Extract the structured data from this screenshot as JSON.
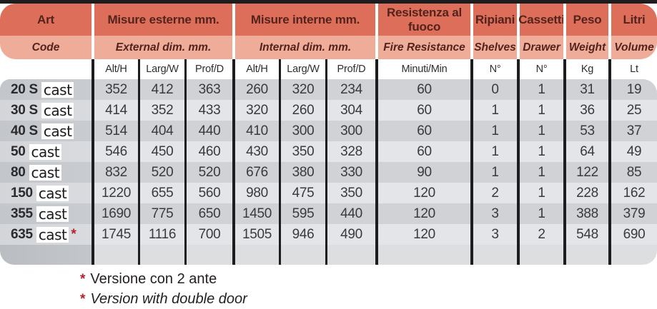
{
  "colors": {
    "top_bar": "#1d1d1f",
    "header_primary_bg": "#dd6e5a",
    "header_secondary_bg": "#efac99",
    "header_text": "#54231d",
    "row_dark_bg": "#d0d2d6",
    "row_light_bg": "#e4e5e8",
    "grid_line": "#1d1d1f",
    "footnote_marker_red": "#b2232b",
    "brand_box_bg": "#ffffff"
  },
  "table": {
    "groups": [
      {
        "it": "Art",
        "en": "Code"
      },
      {
        "it": "Misure esterne mm.",
        "en": "External dim. mm."
      },
      {
        "it": "Misure interne mm.",
        "en": "Internal dim. mm."
      },
      {
        "it": "Resistenza al fuoco",
        "en": "Fire Resistance"
      },
      {
        "it": "Ripiani",
        "en": "Shelves"
      },
      {
        "it": "Cassetti",
        "en": "Drawer"
      },
      {
        "it": "Peso",
        "en": "Weight"
      },
      {
        "it": "Litri",
        "en": "Volume"
      }
    ],
    "units": [
      "Alt/H",
      "Larg/W",
      "Prof/D",
      "Alt/H",
      "Larg/W",
      "Prof/D",
      "Minuti/Min",
      "N°",
      "N°",
      "Kg",
      "Lt"
    ],
    "rows": [
      {
        "code": "20 S",
        "brand": "cast",
        "note": "",
        "values": [
          "352",
          "412",
          "363",
          "260",
          "320",
          "234",
          "60",
          "0",
          "1",
          "31",
          "19"
        ]
      },
      {
        "code": "30 S",
        "brand": "cast",
        "note": "",
        "values": [
          "414",
          "352",
          "433",
          "320",
          "260",
          "304",
          "60",
          "1",
          "1",
          "36",
          "25"
        ]
      },
      {
        "code": "40 S",
        "brand": "cast",
        "note": "",
        "values": [
          "514",
          "404",
          "440",
          "410",
          "300",
          "300",
          "60",
          "1",
          "1",
          "53",
          "37"
        ]
      },
      {
        "code": "50",
        "brand": "cast",
        "note": "",
        "values": [
          "546",
          "450",
          "460",
          "430",
          "350",
          "328",
          "60",
          "1",
          "1",
          "64",
          "49"
        ]
      },
      {
        "code": "80",
        "brand": "cast",
        "note": "",
        "values": [
          "832",
          "520",
          "520",
          "676",
          "380",
          "330",
          "90",
          "1",
          "1",
          "122",
          "85"
        ]
      },
      {
        "code": "150",
        "brand": "cast",
        "note": "",
        "values": [
          "1220",
          "655",
          "560",
          "980",
          "475",
          "350",
          "120",
          "2",
          "1",
          "228",
          "162"
        ]
      },
      {
        "code": "355",
        "brand": "cast",
        "note": "",
        "values": [
          "1690",
          "775",
          "650",
          "1450",
          "595",
          "440",
          "120",
          "3",
          "1",
          "388",
          "379"
        ]
      },
      {
        "code": "635",
        "brand": "cast",
        "note": "*",
        "values": [
          "1745",
          "1116",
          "700",
          "1505",
          "946",
          "490",
          "120",
          "3",
          "2",
          "548",
          "690"
        ]
      }
    ],
    "footnotes": [
      {
        "marker": "*",
        "text": "Versione con 2 ante",
        "italic": false
      },
      {
        "marker": "*",
        "text": "Version with double door",
        "italic": true
      }
    ]
  }
}
